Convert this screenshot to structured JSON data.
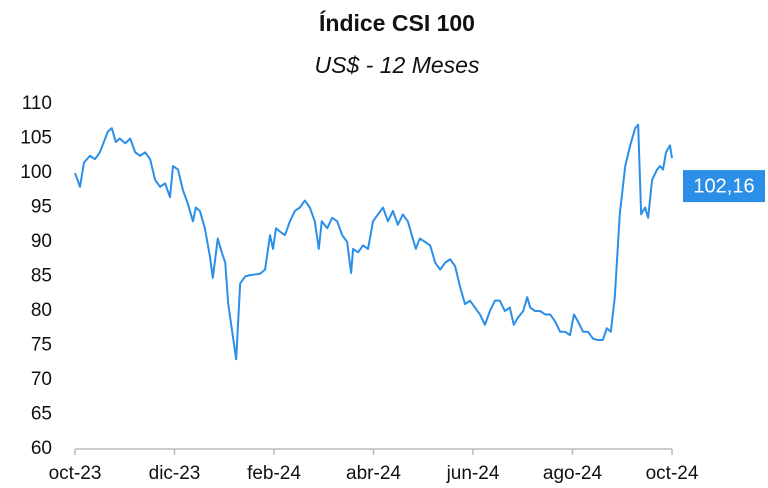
{
  "chart_data": {
    "type": "line",
    "title": "Índice CSI 100",
    "subtitle": "US$ - 12 Meses",
    "x": [
      0,
      0.1,
      0.18,
      0.3,
      0.4,
      0.5,
      0.58,
      0.66,
      0.74,
      0.82,
      0.9,
      1.01,
      1.11,
      1.21,
      1.31,
      1.41,
      1.51,
      1.61,
      1.71,
      1.81,
      1.91,
      1.97,
      2.07,
      2.17,
      2.27,
      2.37,
      2.43,
      2.51,
      2.61,
      2.71,
      2.77,
      2.87,
      2.95,
      3.02,
      3.08,
      3.16,
      3.24,
      3.32,
      3.42,
      3.52,
      3.62,
      3.72,
      3.82,
      3.92,
      3.98,
      4.04,
      4.12,
      4.22,
      4.32,
      4.42,
      4.52,
      4.62,
      4.72,
      4.82,
      4.9,
      4.96,
      5.07,
      5.17,
      5.27,
      5.37,
      5.47,
      5.55,
      5.59,
      5.69,
      5.79,
      5.89,
      5.99,
      6.09,
      6.19,
      6.29,
      6.39,
      6.49,
      6.59,
      6.69,
      6.77,
      6.85,
      6.93,
      7.04,
      7.14,
      7.24,
      7.34,
      7.44,
      7.54,
      7.64,
      7.74,
      7.84,
      7.94,
      8.04,
      8.14,
      8.24,
      8.34,
      8.44,
      8.54,
      8.64,
      8.74,
      8.82,
      8.9,
      9.01,
      9.09,
      9.15,
      9.25,
      9.35,
      9.45,
      9.55,
      9.65,
      9.75,
      9.85,
      9.95,
      10.03,
      10.11,
      10.21,
      10.31,
      10.41,
      10.51,
      10.61,
      10.69,
      10.77,
      10.85,
      10.95,
      11.06,
      11.16,
      11.26,
      11.32,
      11.38,
      11.46,
      11.52,
      11.6,
      11.7,
      11.76,
      11.82,
      11.88,
      11.96,
      12
    ],
    "series": [
      {
        "name": "Índice CSI 100",
        "color": "#2b8fe8",
        "values": [
          100,
          98,
          101.5,
          102.5,
          102,
          103,
          104.5,
          106,
          106.5,
          104.5,
          105,
          104.3,
          105,
          103,
          102.5,
          103,
          102,
          99,
          98,
          98.5,
          96.5,
          101,
          100.5,
          97.5,
          95.5,
          93,
          95,
          94.5,
          92,
          88,
          84.8,
          90.5,
          88.5,
          87,
          81,
          77,
          73,
          84,
          85,
          85.2,
          85.3,
          85.4,
          86,
          91,
          89,
          92,
          91.5,
          91,
          93,
          94.5,
          95,
          96,
          95,
          93,
          89,
          93,
          92,
          93.5,
          93,
          91,
          90,
          85.5,
          89,
          88.5,
          89.5,
          89,
          93,
          94,
          95,
          93,
          94.5,
          92.5,
          94,
          93,
          91,
          89,
          90.5,
          90,
          89.5,
          87,
          86,
          87,
          87.5,
          86.5,
          83.5,
          81,
          81.5,
          80.5,
          79.5,
          78,
          80,
          81.5,
          81.5,
          80,
          80.5,
          78,
          79,
          80,
          82,
          80.5,
          80,
          80,
          79.5,
          79.5,
          78.5,
          77,
          77,
          76.5,
          79.5,
          78.5,
          77,
          77,
          76,
          75.8,
          75.8,
          77.5,
          77,
          82,
          94,
          101,
          104,
          106.5,
          107,
          94,
          95,
          93.5,
          99,
          100.5,
          101,
          100.5,
          103,
          104,
          102.16
        ]
      }
    ],
    "annotations": [
      {
        "text": "102,16",
        "value": 102.16
      }
    ],
    "xlim": [
      0,
      12
    ],
    "xticks": [
      {
        "value": 0,
        "label": "oct-23"
      },
      {
        "value": 2,
        "label": "dic-23"
      },
      {
        "value": 4,
        "label": "feb-24"
      },
      {
        "value": 6,
        "label": "abr-24"
      },
      {
        "value": 8,
        "label": "jun-24"
      },
      {
        "value": 10,
        "label": "ago-24"
      },
      {
        "value": 12,
        "label": "oct-24"
      }
    ],
    "ylim": [
      60,
      110
    ],
    "yticks": [
      60,
      65,
      70,
      75,
      80,
      85,
      90,
      95,
      100,
      105,
      110
    ],
    "grid": false
  }
}
